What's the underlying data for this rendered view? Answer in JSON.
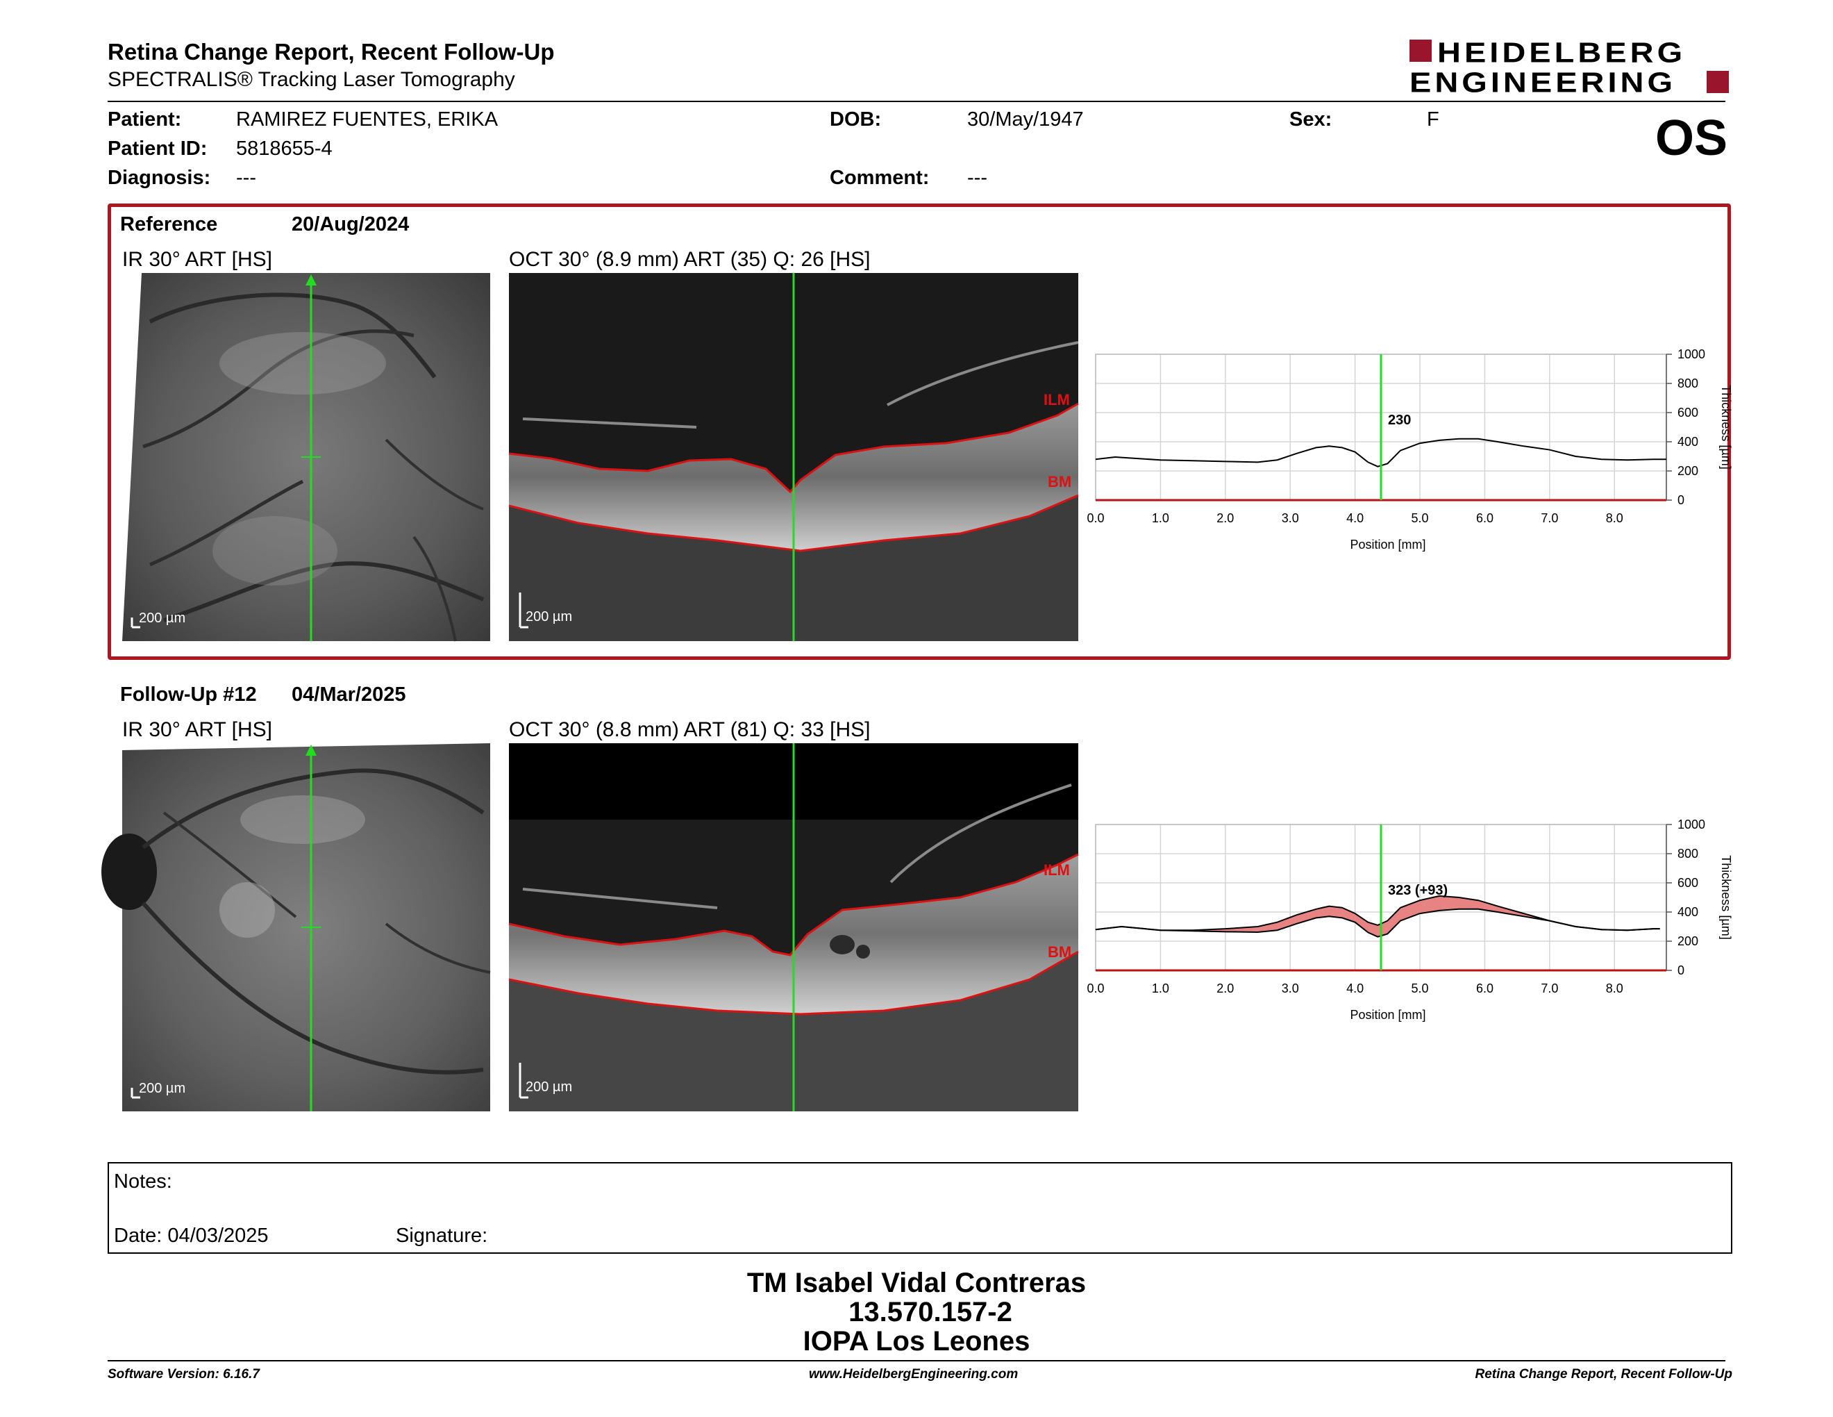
{
  "header": {
    "title": "Retina Change Report, Recent Follow-Up",
    "subtitle": "SPECTRALIS® Tracking Laser Tomography",
    "logo_line1": "HEIDELBERG",
    "logo_line2": "ENGINEERING",
    "eye": "OS"
  },
  "patient": {
    "patient_label": "Patient:",
    "patient_value": "RAMIREZ FUENTES, ERIKA",
    "id_label": "Patient ID:",
    "id_value": "5818655-4",
    "diagnosis_label": "Diagnosis:",
    "diagnosis_value": "---",
    "dob_label": "DOB:",
    "dob_value": "30/May/1947",
    "comment_label": "Comment:",
    "comment_value": "---",
    "sex_label": "Sex:",
    "sex_value": "F"
  },
  "reference": {
    "label": "Reference",
    "date": "20/Aug/2024",
    "ir_label": "IR 30° ART [HS]",
    "oct_label": "OCT 30° (8.9 mm) ART (35) Q: 26 [HS]",
    "scale": "200 µm",
    "ilm": "ILM",
    "bm": "BM",
    "value_label": "230"
  },
  "followup": {
    "label": "Follow-Up #12",
    "date": "04/Mar/2025",
    "ir_label": "IR 30° ART [HS]",
    "oct_label": "OCT 30° (8.8 mm) ART (81) Q: 33 [HS]",
    "scale": "200 µm",
    "ilm": "ILM",
    "bm": "BM",
    "value_label": "323 (+93)"
  },
  "chart_data": [
    {
      "type": "line",
      "xlabel": "Position [mm]",
      "ylabel": "Thickness [µm]",
      "xlim": [
        0,
        8.8
      ],
      "ylim": [
        0,
        1000
      ],
      "xticks": [
        "0.0",
        "1.0",
        "2.0",
        "3.0",
        "4.0",
        "5.0",
        "6.0",
        "7.0",
        "8.0"
      ],
      "yticks": [
        "0",
        "200",
        "400",
        "600",
        "800",
        "1000"
      ],
      "grid": true,
      "cursor_x": 4.4,
      "series": [
        {
          "color": "#000000",
          "x": [
            0.0,
            0.3,
            1.0,
            1.5,
            2.0,
            2.5,
            2.8,
            3.1,
            3.4,
            3.6,
            3.8,
            4.0,
            4.2,
            4.35,
            4.5,
            4.7,
            5.0,
            5.3,
            5.6,
            5.9,
            6.2,
            6.6,
            7.0,
            7.4,
            7.8,
            8.2,
            8.6,
            8.8
          ],
          "y": [
            280,
            295,
            275,
            270,
            265,
            260,
            275,
            320,
            360,
            370,
            360,
            330,
            260,
            230,
            250,
            340,
            390,
            410,
            420,
            420,
            400,
            370,
            345,
            300,
            280,
            275,
            280,
            280
          ]
        }
      ]
    },
    {
      "type": "area",
      "xlabel": "Position [mm]",
      "ylabel": "Thickness [µm]",
      "xlim": [
        0,
        8.8
      ],
      "ylim": [
        0,
        1000
      ],
      "xticks": [
        "0.0",
        "1.0",
        "2.0",
        "3.0",
        "4.0",
        "5.0",
        "6.0",
        "7.0",
        "8.0"
      ],
      "yticks": [
        "0",
        "200",
        "400",
        "600",
        "800",
        "1000"
      ],
      "grid": true,
      "cursor_x": 4.4,
      "series": [
        {
          "color": "#000000",
          "x": [
            0.0,
            0.4,
            1.0,
            1.5,
            2.0,
            2.5,
            2.8,
            3.1,
            3.4,
            3.6,
            3.8,
            4.0,
            4.2,
            4.35,
            4.5,
            4.7,
            5.0,
            5.3,
            5.6,
            5.9,
            6.2,
            6.6,
            7.0,
            7.4,
            7.8,
            8.2,
            8.6,
            8.7
          ],
          "y": [
            280,
            300,
            275,
            275,
            285,
            300,
            330,
            380,
            420,
            440,
            430,
            390,
            330,
            310,
            340,
            430,
            480,
            510,
            500,
            480,
            440,
            390,
            340,
            300,
            280,
            275,
            285,
            285
          ]
        },
        {
          "color": "#000000",
          "x": [
            0.0,
            0.4,
            1.0,
            1.5,
            2.0,
            2.5,
            2.8,
            3.1,
            3.4,
            3.6,
            3.8,
            4.0,
            4.2,
            4.35,
            4.5,
            4.7,
            5.0,
            5.3,
            5.6,
            5.9,
            6.2,
            6.6,
            7.0,
            7.4,
            7.8,
            8.2,
            8.6,
            8.7
          ],
          "y": [
            280,
            300,
            275,
            270,
            265,
            262,
            275,
            320,
            360,
            370,
            360,
            330,
            260,
            230,
            250,
            340,
            390,
            410,
            420,
            420,
            400,
            370,
            340,
            300,
            280,
            275,
            285,
            285
          ]
        }
      ]
    }
  ],
  "notes": {
    "notes_label": "Notes:",
    "date_label": "Date: 04/03/2025",
    "signature_label": "Signature:"
  },
  "signer": {
    "name": "TM Isabel Vidal Contreras",
    "id": "13.570.157-2",
    "org": "IOPA Los Leones"
  },
  "footer": {
    "software": "Software Version: 6.16.7",
    "website": "www.HeidelbergEngineering.com",
    "report": "Retina Change Report, Recent Follow-Up"
  },
  "colors": {
    "brand": "#98152c",
    "box_border": "#b0141f",
    "cursor": "#22dd22",
    "segmentation": "#dd1111",
    "change_fill": "#e78383"
  }
}
